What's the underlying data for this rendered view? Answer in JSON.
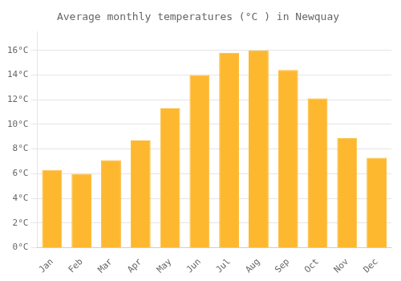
{
  "chart_data": {
    "type": "bar",
    "title": "Average monthly temperatures (°C ) in Newquay",
    "categories": [
      "Jan",
      "Feb",
      "Mar",
      "Apr",
      "May",
      "Jun",
      "Jul",
      "Aug",
      "Sep",
      "Oct",
      "Nov",
      "Dec"
    ],
    "values": [
      6.3,
      6.0,
      7.1,
      8.7,
      11.3,
      14.0,
      15.8,
      16.0,
      14.4,
      12.1,
      8.9,
      7.3
    ],
    "color": "#FDB830",
    "ylim": [
      0,
      17.5
    ],
    "yticks": [
      {
        "value": 0,
        "label": "0°C"
      },
      {
        "value": 2,
        "label": "2°C"
      },
      {
        "value": 4,
        "label": "4°C"
      },
      {
        "value": 6,
        "label": "6°C"
      },
      {
        "value": 8,
        "label": "8°C"
      },
      {
        "value": 10,
        "label": "10°C"
      },
      {
        "value": 12,
        "label": "12°C"
      },
      {
        "value": 14,
        "label": "14°C"
      },
      {
        "value": 16,
        "label": "16°C"
      }
    ],
    "grid": true
  }
}
